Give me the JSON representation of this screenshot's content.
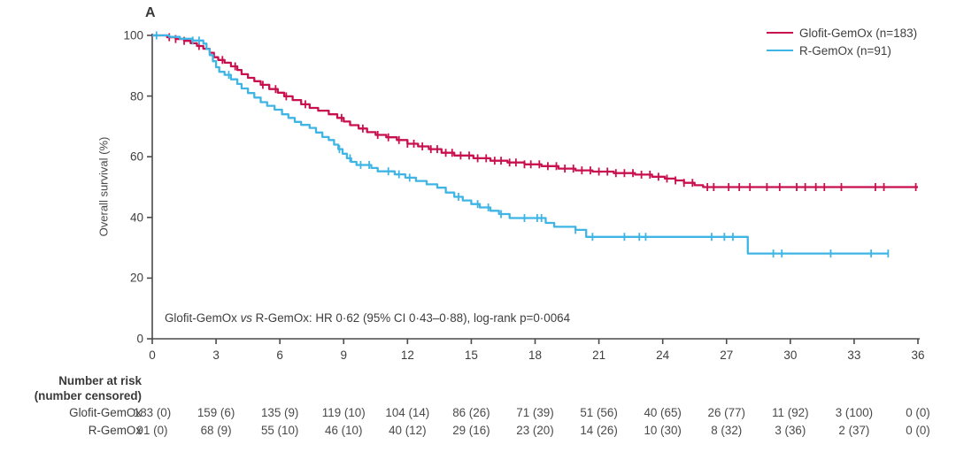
{
  "panel_label": "A",
  "colors": {
    "glofit": "#C8104E",
    "rgemox": "#3FB5E5",
    "axis": "#4a4a4a",
    "text": "#3e3e3e"
  },
  "legend": {
    "items": [
      {
        "label": "Glofit-GemOx (n=183)",
        "color_key": "glofit"
      },
      {
        "label": "R-GemOx (n=91)",
        "color_key": "rgemox"
      }
    ]
  },
  "annotation": {
    "pre": "Glofit-GemOx ",
    "vs": "vs",
    "post": " R-GemOx: HR 0·62 (95% CI 0·43–0·88), log-rank p=0·0064"
  },
  "chart_data": {
    "type": "line",
    "subtype": "kaplan-meier-step",
    "title": "",
    "xlabel": "",
    "ylabel": "Overall survival (%)",
    "xlim": [
      0,
      36
    ],
    "ylim": [
      0,
      100
    ],
    "xticks": [
      0,
      3,
      6,
      9,
      12,
      15,
      18,
      21,
      24,
      27,
      30,
      33,
      36
    ],
    "yticks": [
      0,
      20,
      40,
      60,
      80,
      100
    ],
    "grid": false,
    "legend_position": "top-right",
    "series": [
      {
        "name": "Glofit-GemOx (n=183)",
        "color_key": "glofit",
        "steps": [
          [
            0,
            100
          ],
          [
            0.7,
            99.4
          ],
          [
            1.1,
            98.8
          ],
          [
            1.5,
            98.2
          ],
          [
            1.8,
            97.4
          ],
          [
            2.1,
            96.5
          ],
          [
            2.4,
            95.6
          ],
          [
            2.7,
            94.3
          ],
          [
            2.9,
            92.8
          ],
          [
            3.1,
            91.9
          ],
          [
            3.4,
            91.0
          ],
          [
            3.7,
            89.8
          ],
          [
            4.0,
            88.6
          ],
          [
            4.2,
            87.2
          ],
          [
            4.5,
            86.0
          ],
          [
            4.8,
            84.9
          ],
          [
            5.1,
            83.7
          ],
          [
            5.5,
            82.3
          ],
          [
            5.9,
            81.1
          ],
          [
            6.2,
            79.9
          ],
          [
            6.6,
            78.7
          ],
          [
            7.0,
            77.3
          ],
          [
            7.4,
            76.1
          ],
          [
            7.8,
            75.2
          ],
          [
            8.3,
            74.0
          ],
          [
            8.7,
            72.8
          ],
          [
            9.0,
            71.6
          ],
          [
            9.3,
            70.4
          ],
          [
            9.7,
            69.3
          ],
          [
            10.1,
            68.1
          ],
          [
            10.5,
            67.2
          ],
          [
            11.0,
            66.4
          ],
          [
            11.5,
            65.5
          ],
          [
            12.0,
            64.3
          ],
          [
            12.5,
            63.4
          ],
          [
            13.0,
            62.5
          ],
          [
            13.6,
            61.3
          ],
          [
            14.2,
            60.4
          ],
          [
            15.1,
            59.5
          ],
          [
            15.9,
            58.7
          ],
          [
            16.7,
            58.1
          ],
          [
            17.5,
            57.5
          ],
          [
            18.3,
            56.9
          ],
          [
            19.1,
            56.1
          ],
          [
            19.9,
            55.5
          ],
          [
            20.7,
            55.1
          ],
          [
            21.7,
            54.6
          ],
          [
            22.7,
            54.1
          ],
          [
            23.5,
            53.4
          ],
          [
            24.1,
            52.8
          ],
          [
            24.6,
            52.2
          ],
          [
            25.0,
            51.4
          ],
          [
            25.5,
            50.6
          ],
          [
            25.9,
            50.0
          ],
          [
            36.0,
            50.0
          ]
        ],
        "censor_times": [
          0.8,
          1.1,
          1.5,
          2.2,
          3.3,
          3.9,
          5.2,
          5.8,
          6.3,
          7.2,
          8.9,
          9.9,
          10.6,
          11.1,
          11.6,
          12.0,
          12.3,
          12.7,
          13.1,
          13.4,
          13.8,
          14.1,
          14.5,
          14.9,
          15.3,
          15.7,
          16.1,
          16.4,
          16.8,
          17.1,
          17.5,
          17.8,
          18.2,
          18.6,
          19.0,
          19.4,
          19.8,
          20.2,
          20.6,
          21.0,
          21.4,
          21.8,
          22.2,
          22.6,
          23.0,
          23.4,
          23.8,
          24.2,
          24.6,
          25.0,
          25.4,
          26.1,
          26.4,
          27.1,
          27.6,
          28.1,
          28.9,
          29.5,
          30.3,
          30.7,
          31.2,
          31.6,
          32.4,
          34.0,
          34.4,
          35.9
        ]
      },
      {
        "name": "R-GemOx (n=91)",
        "color_key": "rgemox",
        "steps": [
          [
            0,
            100
          ],
          [
            0.8,
            99.5
          ],
          [
            1.3,
            98.9
          ],
          [
            1.9,
            98.3
          ],
          [
            2.4,
            97.3
          ],
          [
            2.55,
            95.5
          ],
          [
            2.7,
            93.5
          ],
          [
            2.85,
            91.5
          ],
          [
            3.0,
            89.5
          ],
          [
            3.15,
            88.0
          ],
          [
            3.4,
            87.0
          ],
          [
            3.7,
            85.5
          ],
          [
            4.0,
            84.0
          ],
          [
            4.2,
            82.5
          ],
          [
            4.5,
            81.0
          ],
          [
            4.8,
            79.5
          ],
          [
            5.1,
            78.0
          ],
          [
            5.4,
            76.8
          ],
          [
            5.75,
            75.5
          ],
          [
            6.1,
            74.0
          ],
          [
            6.4,
            72.8
          ],
          [
            6.7,
            71.5
          ],
          [
            7.0,
            70.5
          ],
          [
            7.4,
            69.5
          ],
          [
            7.7,
            68.0
          ],
          [
            8.0,
            66.5
          ],
          [
            8.3,
            65.5
          ],
          [
            8.55,
            64.0
          ],
          [
            8.75,
            62.5
          ],
          [
            8.95,
            61.0
          ],
          [
            9.15,
            59.5
          ],
          [
            9.35,
            58.3
          ],
          [
            9.6,
            57.3
          ],
          [
            10.3,
            56.3
          ],
          [
            10.6,
            55.2
          ],
          [
            11.4,
            54.2
          ],
          [
            11.9,
            53.1
          ],
          [
            12.4,
            52.0
          ],
          [
            12.9,
            50.9
          ],
          [
            13.4,
            49.8
          ],
          [
            13.8,
            48.2
          ],
          [
            14.2,
            46.8
          ],
          [
            14.6,
            45.6
          ],
          [
            15.0,
            44.4
          ],
          [
            15.4,
            43.3
          ],
          [
            15.9,
            42.2
          ],
          [
            16.3,
            41.1
          ],
          [
            16.8,
            39.8
          ],
          [
            18.5,
            38.2
          ],
          [
            18.9,
            36.9
          ],
          [
            19.9,
            35.9
          ],
          [
            20.4,
            33.6
          ],
          [
            28.0,
            28.1
          ],
          [
            34.6,
            28.1
          ]
        ],
        "censor_times": [
          0.2,
          1.9,
          2.2,
          3.6,
          8.8,
          9.3,
          9.8,
          10.2,
          11.1,
          11.6,
          12.1,
          14.4,
          15.3,
          15.8,
          16.4,
          17.5,
          18.1,
          18.3,
          19.9,
          20.7,
          22.2,
          22.9,
          23.2,
          26.3,
          26.9,
          27.3,
          29.2,
          29.6,
          31.9,
          33.8,
          34.6
        ]
      }
    ],
    "annotation_text": "Glofit-GemOx vs R-GemOx: HR 0·62 (95% CI 0·43–0·88), log-rank p=0·0064"
  },
  "risk_table": {
    "header_line1": "Number at risk",
    "header_line2": "(number censored)",
    "rows": [
      {
        "label": "Glofit-GemOx",
        "values": [
          "183 (0)",
          "159 (6)",
          "135 (9)",
          "119 (10)",
          "104 (14)",
          "86 (26)",
          "71 (39)",
          "51 (56)",
          "40 (65)",
          "26 (77)",
          "11 (92)",
          "3 (100)",
          "0 (0)"
        ]
      },
      {
        "label": "R-GemOx",
        "values": [
          "91 (0)",
          "68 (9)",
          "55 (10)",
          "46 (10)",
          "40 (12)",
          "29 (16)",
          "23 (20)",
          "14 (26)",
          "10 (30)",
          "8 (32)",
          "3 (36)",
          "2 (37)",
          "0 (0)"
        ]
      }
    ]
  }
}
